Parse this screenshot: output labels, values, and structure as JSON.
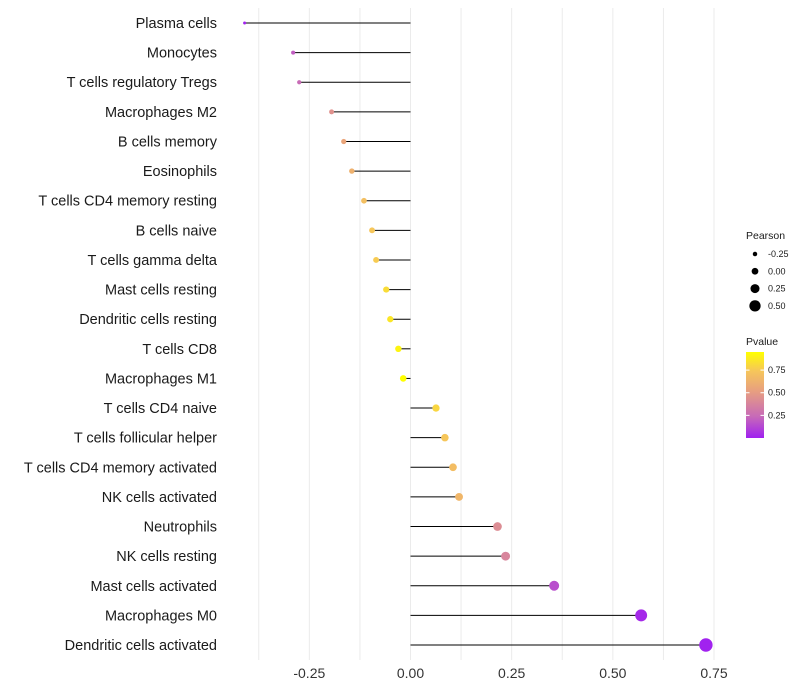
{
  "chart_data": {
    "type": "lollipop",
    "title": "",
    "xlabel": "",
    "ylabel": "",
    "xlim": [
      -0.5,
      0.8
    ],
    "x_ticks": [
      -0.25,
      0.0,
      0.25,
      0.5,
      0.75
    ],
    "x_tick_labels": [
      "-0.25",
      "0.00",
      "0.25",
      "0.50",
      "0.75"
    ],
    "grid": true,
    "points": [
      {
        "label": "Plasma cells",
        "pearson": -0.41,
        "pvalue": 0.01
      },
      {
        "label": "Monocytes",
        "pearson": -0.29,
        "pvalue": 0.2
      },
      {
        "label": "T cells regulatory  Tregs",
        "pearson": -0.275,
        "pvalue": 0.25
      },
      {
        "label": "Macrophages M2",
        "pearson": -0.195,
        "pvalue": 0.45
      },
      {
        "label": "B cells memory",
        "pearson": -0.165,
        "pvalue": 0.55
      },
      {
        "label": "Eosinophils",
        "pearson": -0.145,
        "pvalue": 0.62
      },
      {
        "label": "T cells CD4 memory resting",
        "pearson": -0.115,
        "pvalue": 0.7
      },
      {
        "label": "B cells naive",
        "pearson": -0.095,
        "pvalue": 0.74
      },
      {
        "label": "T cells gamma delta",
        "pearson": -0.085,
        "pvalue": 0.76
      },
      {
        "label": "Mast cells resting",
        "pearson": -0.06,
        "pvalue": 0.82
      },
      {
        "label": "Dendritic cells resting",
        "pearson": -0.05,
        "pvalue": 0.86
      },
      {
        "label": "T cells CD8",
        "pearson": -0.03,
        "pvalue": 0.91
      },
      {
        "label": "Macrophages M1",
        "pearson": -0.018,
        "pvalue": 0.95
      },
      {
        "label": "T cells CD4 naive",
        "pearson": 0.063,
        "pvalue": 0.8
      },
      {
        "label": "T cells follicular helper",
        "pearson": 0.085,
        "pvalue": 0.74
      },
      {
        "label": "T cells CD4 memory activated",
        "pearson": 0.105,
        "pvalue": 0.69
      },
      {
        "label": "NK cells activated",
        "pearson": 0.12,
        "pvalue": 0.65
      },
      {
        "label": "Neutrophils",
        "pearson": 0.215,
        "pvalue": 0.42
      },
      {
        "label": "NK cells resting",
        "pearson": 0.235,
        "pvalue": 0.38
      },
      {
        "label": "Mast cells activated",
        "pearson": 0.355,
        "pvalue": 0.15
      },
      {
        "label": "Macrophages M0",
        "pearson": 0.57,
        "pvalue": 0.03
      },
      {
        "label": "Dendritic cells activated",
        "pearson": 0.73,
        "pvalue": 0.005
      }
    ],
    "size_legend": {
      "title": "Pearson",
      "entries": [
        {
          "label": "-0.25",
          "value": -0.25
        },
        {
          "label": "0.00",
          "value": 0.0
        },
        {
          "label": "0.25",
          "value": 0.25
        },
        {
          "label": "0.50",
          "value": 0.5
        }
      ]
    },
    "color_legend": {
      "title": "Pvalue",
      "ticks": [
        {
          "label": "0.75",
          "value": 0.75
        },
        {
          "label": "0.50",
          "value": 0.5
        },
        {
          "label": "0.25",
          "value": 0.25
        }
      ],
      "range": [
        0.0,
        0.95
      ],
      "colors": [
        "#a020f0",
        "#c76ab8",
        "#e8a07f",
        "#f6c65a",
        "#ffff00"
      ]
    }
  }
}
